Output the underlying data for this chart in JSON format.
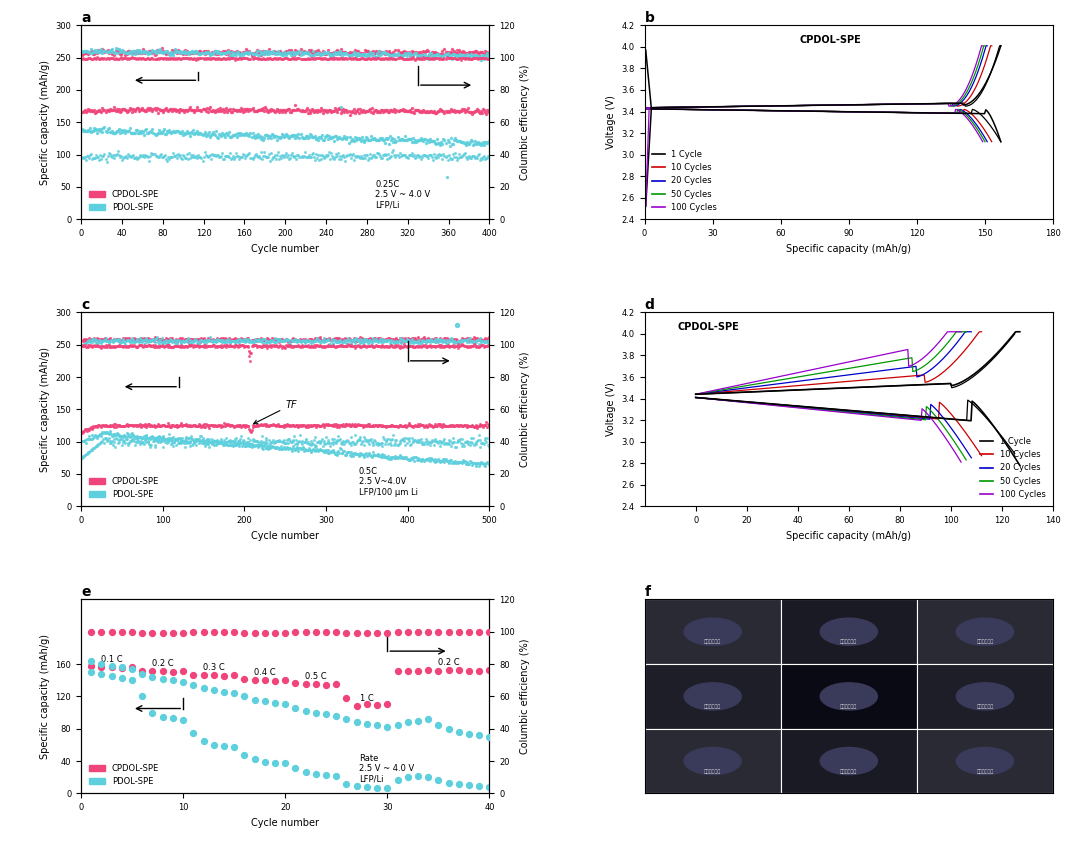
{
  "panel_a": {
    "title": "a",
    "xlim": [
      0,
      400
    ],
    "ylim_left": [
      0,
      300
    ],
    "ylim_right": [
      0,
      120
    ],
    "xlabel": "Cycle number",
    "ylabel_left": "Specific capacity (mAh/g)",
    "ylabel_right": "Columbic efficiency (%)",
    "annotation": "0.25C\n2.5 V ~ 4.0 V\nLFP/Li",
    "cpdol_color": "#F0457A",
    "pdol_color": "#5DCFDD",
    "xticks": [
      0,
      40,
      80,
      120,
      160,
      200,
      240,
      280,
      320,
      360,
      400
    ]
  },
  "panel_b": {
    "title": "b",
    "xlim": [
      0,
      180
    ],
    "ylim": [
      2.4,
      4.2
    ],
    "xlabel": "Specific capacity (mAh/g)",
    "ylabel": "Voltage (V)",
    "label": "CPDOL-SPE",
    "cycles_legend": [
      "1 Cycle",
      "10 Cycles",
      "20 Cycles",
      "50 Cycles",
      "100 Cycles"
    ],
    "colors": [
      "#000000",
      "#CC0000",
      "#0000CC",
      "#009900",
      "#9900CC"
    ],
    "xticks": [
      0,
      30,
      60,
      90,
      120,
      150,
      180
    ],
    "yticks": [
      2.4,
      2.6,
      2.8,
      3.0,
      3.2,
      3.4,
      3.6,
      3.8,
      4.0,
      4.2
    ]
  },
  "panel_c": {
    "title": "c",
    "xlim": [
      0,
      500
    ],
    "ylim_left": [
      0,
      300
    ],
    "ylim_right": [
      0,
      120
    ],
    "xlabel": "Cycle number",
    "ylabel_left": "Specific capacity (mAh/g)",
    "ylabel_right": "Columbic efficiency (%)",
    "annotation": "0.5C\n2.5 V~4.0V\nLFP/100 μm Li",
    "cpdol_color": "#F0457A",
    "pdol_color": "#5DCFDD",
    "xticks": [
      0,
      100,
      200,
      300,
      400,
      500
    ]
  },
  "panel_d": {
    "title": "d",
    "xlim": [
      -20,
      140
    ],
    "ylim": [
      2.4,
      4.2
    ],
    "xlabel": "Specific capacity (mAh/g)",
    "ylabel": "Voltage (V)",
    "label": "CPDOL-SPE",
    "cycles_legend": [
      "1 Cycle",
      "10 Cycles",
      "20 Cycles",
      "50 Cycles",
      "100 Cycles"
    ],
    "colors": [
      "#000000",
      "#CC0000",
      "#0000CC",
      "#009900",
      "#9900CC"
    ],
    "xticks": [
      0,
      20,
      40,
      60,
      80,
      100,
      120,
      140
    ],
    "yticks": [
      2.4,
      2.6,
      2.8,
      3.0,
      3.2,
      3.4,
      3.6,
      3.8,
      4.0,
      4.2
    ]
  },
  "panel_e": {
    "title": "e",
    "xlim": [
      0,
      40
    ],
    "ylim_left": [
      0,
      240
    ],
    "ylim_right": [
      0,
      120
    ],
    "xlabel": "Cycle number",
    "ylabel_left": "Specific capacity (mAh/g)",
    "ylabel_right": "Columbic efficiency (%)",
    "annotation": "Rate\n2.5 V ~ 4.0 V\nLFP/Li",
    "cpdol_color": "#F0457A",
    "pdol_color": "#5DCFDD",
    "xticks": [
      0,
      10,
      20,
      30,
      40
    ],
    "yticks": [
      0,
      40,
      80,
      120,
      160
    ]
  },
  "panel_f": {
    "title": "f"
  },
  "background_color": "#FFFFFF",
  "legend_cpdol": "CPDOL-SPE",
  "legend_pdol": "PDOL-SPE"
}
